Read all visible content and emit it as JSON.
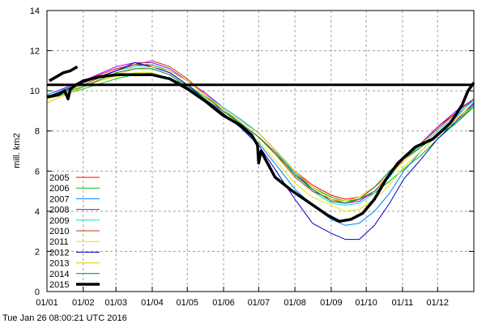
{
  "chart_data": {
    "type": "line",
    "title": "",
    "xlabel": "",
    "ylabel": "mill. km2",
    "ylim": [
      0,
      14
    ],
    "xlim_days": [
      0,
      365
    ],
    "grid": true,
    "legend_position": "bottom-left",
    "y_ticks": [
      "0",
      "2",
      "4",
      "6",
      "8",
      "10",
      "12",
      "14"
    ],
    "x_ticks": [
      {
        "label": "01/01",
        "day": 0
      },
      {
        "label": "01/02",
        "day": 31
      },
      {
        "label": "01/03",
        "day": 59
      },
      {
        "label": "01/04",
        "day": 90
      },
      {
        "label": "01/05",
        "day": 120
      },
      {
        "label": "01/06",
        "day": 151
      },
      {
        "label": "01/07",
        "day": 181
      },
      {
        "label": "01/08",
        "day": 212
      },
      {
        "label": "01/09",
        "day": 243
      },
      {
        "label": "01/10",
        "day": 273
      },
      {
        "label": "01/11",
        "day": 304
      },
      {
        "label": "01/12",
        "day": 334
      }
    ],
    "reference_line": 10.3,
    "x": [
      0,
      31,
      59,
      75,
      90,
      105,
      120,
      135,
      150,
      165,
      181,
      196,
      212,
      227,
      243,
      255,
      267,
      280,
      293,
      305,
      320,
      334,
      350,
      365
    ],
    "series": [
      {
        "name": "2005",
        "color": "#ff0000",
        "values": [
          9.8,
          10.5,
          11.1,
          11.3,
          11.3,
          11.0,
          10.5,
          9.9,
          9.2,
          8.6,
          7.9,
          7.0,
          6.0,
          5.3,
          4.8,
          4.6,
          4.7,
          5.2,
          5.8,
          6.6,
          7.4,
          8.2,
          8.9,
          9.6
        ]
      },
      {
        "name": "2006",
        "color": "#00c000",
        "values": [
          9.6,
          10.1,
          10.6,
          10.8,
          10.9,
          10.6,
          10.3,
          9.7,
          9.1,
          8.4,
          7.7,
          6.8,
          5.9,
          5.2,
          4.7,
          4.5,
          4.6,
          4.9,
          5.5,
          6.1,
          6.8,
          7.6,
          8.4,
          9.2
        ]
      },
      {
        "name": "2007",
        "color": "#0080ff",
        "values": [
          9.7,
          10.4,
          11.0,
          11.3,
          11.2,
          10.9,
          10.3,
          9.6,
          8.9,
          8.2,
          7.4,
          6.3,
          5.1,
          4.3,
          3.6,
          3.3,
          3.4,
          4.0,
          4.9,
          6.0,
          7.0,
          7.8,
          8.7,
          9.6
        ]
      },
      {
        "name": "2008",
        "color": "#a000ff",
        "values": [
          9.8,
          10.5,
          11.2,
          11.4,
          11.4,
          11.1,
          10.5,
          9.9,
          9.2,
          8.6,
          7.9,
          7.0,
          5.9,
          5.1,
          4.5,
          4.4,
          4.5,
          5.0,
          5.8,
          6.7,
          7.4,
          8.2,
          9.0,
          9.6
        ]
      },
      {
        "name": "2009",
        "color": "#00e0e0",
        "values": [
          9.8,
          10.4,
          11.0,
          11.2,
          11.3,
          11.0,
          10.5,
          9.8,
          9.2,
          8.6,
          7.9,
          7.0,
          5.9,
          5.0,
          4.4,
          4.3,
          4.4,
          4.9,
          5.7,
          6.6,
          7.3,
          8.0,
          8.8,
          9.5
        ]
      },
      {
        "name": "2010",
        "color": "#c04000",
        "values": [
          9.7,
          10.3,
          11.0,
          11.3,
          11.5,
          11.2,
          10.6,
          9.8,
          9.0,
          8.4,
          7.7,
          6.8,
          5.7,
          5.0,
          4.6,
          4.4,
          4.6,
          5.0,
          5.8,
          6.6,
          7.4,
          8.1,
          8.9,
          9.6
        ]
      },
      {
        "name": "2011",
        "color": "#e8e800",
        "values": [
          9.6,
          10.3,
          10.7,
          10.9,
          10.9,
          10.6,
          10.2,
          9.6,
          8.9,
          8.2,
          7.5,
          6.5,
          5.4,
          4.7,
          4.3,
          4.0,
          4.1,
          4.6,
          5.3,
          6.2,
          7.0,
          7.8,
          8.6,
          9.4
        ]
      },
      {
        "name": "2012",
        "color": "#0000c0",
        "values": [
          9.7,
          10.4,
          11.0,
          11.4,
          11.2,
          10.9,
          10.3,
          9.6,
          8.9,
          8.2,
          7.3,
          6.0,
          4.6,
          3.4,
          2.9,
          2.6,
          2.6,
          3.3,
          4.4,
          5.6,
          6.6,
          7.6,
          8.5,
          9.4
        ]
      },
      {
        "name": "2013",
        "color": "#ffc000",
        "values": [
          9.4,
          10.2,
          10.8,
          11.1,
          11.2,
          11.0,
          10.5,
          9.8,
          9.1,
          8.5,
          7.9,
          7.0,
          6.0,
          5.2,
          4.6,
          4.5,
          4.7,
          5.2,
          5.8,
          6.5,
          7.2,
          7.9,
          8.6,
          9.3
        ]
      },
      {
        "name": "2014",
        "color": "#008040",
        "values": [
          9.7,
          10.2,
          10.9,
          11.1,
          11.1,
          10.8,
          10.2,
          9.6,
          9.0,
          8.4,
          7.7,
          6.9,
          5.8,
          5.1,
          4.5,
          4.4,
          4.6,
          5.2,
          6.0,
          6.6,
          7.2,
          7.8,
          8.4,
          9.3
        ]
      },
      {
        "name": "2015",
        "color": "#000000",
        "thick": true,
        "points": [
          [
            0,
            9.7
          ],
          [
            10,
            9.8
          ],
          [
            15,
            10.0
          ],
          [
            18,
            9.6
          ],
          [
            20,
            10.1
          ],
          [
            25,
            10.3
          ],
          [
            31,
            10.5
          ],
          [
            45,
            10.7
          ],
          [
            60,
            10.8
          ],
          [
            75,
            10.8
          ],
          [
            90,
            10.8
          ],
          [
            105,
            10.6
          ],
          [
            120,
            10.1
          ],
          [
            135,
            9.5
          ],
          [
            150,
            8.8
          ],
          [
            165,
            8.3
          ],
          [
            175,
            7.8
          ],
          [
            180,
            7.3
          ],
          [
            181,
            6.4
          ],
          [
            183,
            7.0
          ],
          [
            195,
            5.7
          ],
          [
            210,
            5.0
          ],
          [
            225,
            4.4
          ],
          [
            240,
            3.8
          ],
          [
            250,
            3.5
          ],
          [
            260,
            3.6
          ],
          [
            270,
            3.9
          ],
          [
            280,
            4.6
          ],
          [
            290,
            5.6
          ],
          [
            300,
            6.4
          ],
          [
            315,
            7.2
          ],
          [
            330,
            7.6
          ],
          [
            345,
            8.4
          ],
          [
            355,
            9.3
          ],
          [
            360,
            10.0
          ],
          [
            365,
            10.4
          ]
        ]
      }
    ],
    "current_year_segment": {
      "color": "#000000",
      "points": [
        [
          2,
          10.5
        ],
        [
          8,
          10.7
        ],
        [
          14,
          10.9
        ],
        [
          20,
          11.0
        ],
        [
          26,
          11.2
        ]
      ]
    }
  },
  "footer": {
    "timestamp": "Tue Jan 26 08:00:21 UTC 2016"
  }
}
